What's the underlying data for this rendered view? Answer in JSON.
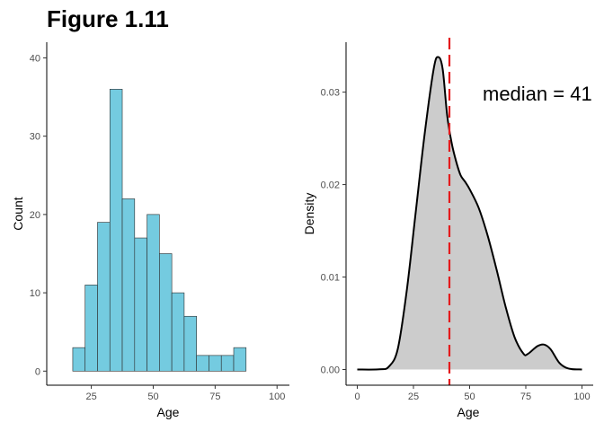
{
  "figure_title": "Figure 1.11",
  "colors": {
    "bar_fill": "#74cbe0",
    "bar_stroke": "#2b2b2b",
    "density_fill": "#cccccc",
    "density_line": "#000000",
    "median_line": "#e41a1c"
  },
  "chart_data": [
    {
      "type": "bar",
      "subtype": "histogram",
      "title": "",
      "xlabel": "Age",
      "ylabel": "Count",
      "xlim": [
        7,
        105
      ],
      "ylim": [
        -1.8,
        42
      ],
      "x_ticks": [
        25,
        50,
        75,
        100
      ],
      "y_ticks": [
        0,
        10,
        20,
        30,
        40
      ],
      "grid": false,
      "bin_width": 5,
      "bin_starts": [
        17.5,
        22.5,
        27.5,
        32.5,
        37.5,
        42.5,
        47.5,
        52.5,
        57.5,
        62.5,
        67.5,
        72.5,
        77.5,
        82.5
      ],
      "values": [
        3,
        11,
        19,
        36,
        22,
        17,
        20,
        15,
        10,
        7,
        2,
        2,
        2,
        3
      ]
    },
    {
      "type": "area",
      "subtype": "density",
      "title": "",
      "xlabel": "Age",
      "ylabel": "Density",
      "xlim": [
        -5,
        105
      ],
      "ylim": [
        -0.0017,
        0.0354
      ],
      "x_ticks": [
        0,
        25,
        50,
        75,
        100
      ],
      "y_ticks": [
        0,
        0.01,
        0.02,
        0.03
      ],
      "y_tick_labels": [
        "0.00",
        "0.01",
        "0.02",
        "0.03"
      ],
      "grid": false,
      "x": [
        0,
        10,
        14,
        18,
        22,
        26,
        30,
        34,
        36,
        38,
        40,
        42,
        44,
        46,
        48,
        50,
        54,
        58,
        62,
        66,
        70,
        74,
        76,
        80,
        83,
        86,
        90,
        94,
        100
      ],
      "y": [
        0,
        2e-05,
        0.0003,
        0.0022,
        0.0085,
        0.017,
        0.0255,
        0.0325,
        0.0338,
        0.0325,
        0.0275,
        0.0245,
        0.0225,
        0.021,
        0.0203,
        0.0195,
        0.0175,
        0.0145,
        0.0108,
        0.0068,
        0.0035,
        0.0017,
        0.0017,
        0.0025,
        0.0027,
        0.0022,
        0.0007,
        0.0001,
        0
      ],
      "vline": {
        "x": 41,
        "label": "median = 41"
      }
    }
  ]
}
